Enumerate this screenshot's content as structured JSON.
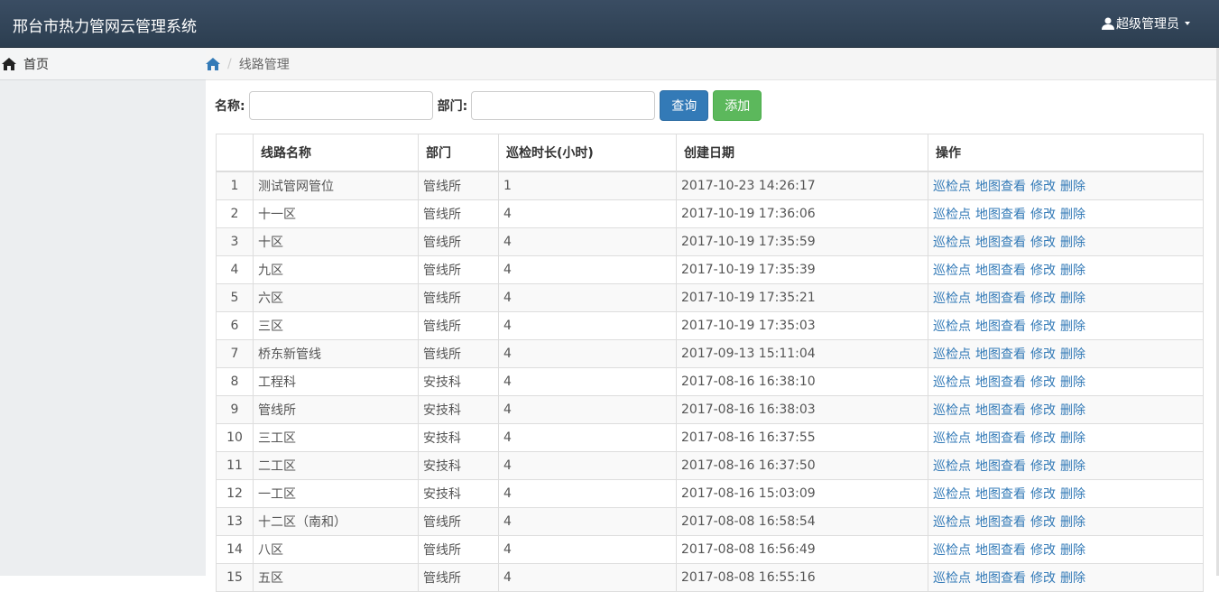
{
  "header": {
    "title": "邢台市热力管网云管理系统",
    "user": "超级管理员"
  },
  "sidebar": {
    "items": [
      "首页"
    ]
  },
  "breadcrumb": {
    "separator": "/",
    "current": "线路管理"
  },
  "search": {
    "name_label": "名称:",
    "dept_label": "部门:",
    "query_button": "查询",
    "add_button": "添加"
  },
  "table": {
    "columns": [
      "线路名称",
      "部门",
      "巡检时长(小时)",
      "创建日期",
      "操作"
    ],
    "rows": [
      [
        "1",
        "测试管网管位",
        "管线所",
        "1",
        "2017-10-23 14:26:17"
      ],
      [
        "2",
        "十一区",
        "管线所",
        "4",
        "2017-10-19 17:36:06"
      ],
      [
        "3",
        "十区",
        "管线所",
        "4",
        "2017-10-19 17:35:59"
      ],
      [
        "4",
        "九区",
        "管线所",
        "4",
        "2017-10-19 17:35:39"
      ],
      [
        "5",
        "六区",
        "管线所",
        "4",
        "2017-10-19 17:35:21"
      ],
      [
        "6",
        "三区",
        "管线所",
        "4",
        "2017-10-19 17:35:03"
      ],
      [
        "7",
        "桥东新管线",
        "管线所",
        "4",
        "2017-09-13 15:11:04"
      ],
      [
        "8",
        "工程科",
        "安技科",
        "4",
        "2017-08-16 16:38:10"
      ],
      [
        "9",
        "管线所",
        "安技科",
        "4",
        "2017-08-16 16:38:03"
      ],
      [
        "10",
        "三工区",
        "安技科",
        "4",
        "2017-08-16 16:37:55"
      ],
      [
        "11",
        "二工区",
        "安技科",
        "4",
        "2017-08-16 16:37:50"
      ],
      [
        "12",
        "一工区",
        "安技科",
        "4",
        "2017-08-16 15:03:09"
      ],
      [
        "13",
        "十二区（南和）",
        "管线所",
        "4",
        "2017-08-08 16:58:54"
      ],
      [
        "14",
        "八区",
        "管线所",
        "4",
        "2017-08-08 16:56:49"
      ],
      [
        "15",
        "五区",
        "管线所",
        "4",
        "2017-08-08 16:55:16"
      ]
    ],
    "row_actions": [
      "巡检点",
      "地图查看",
      "修改",
      "删除"
    ]
  }
}
